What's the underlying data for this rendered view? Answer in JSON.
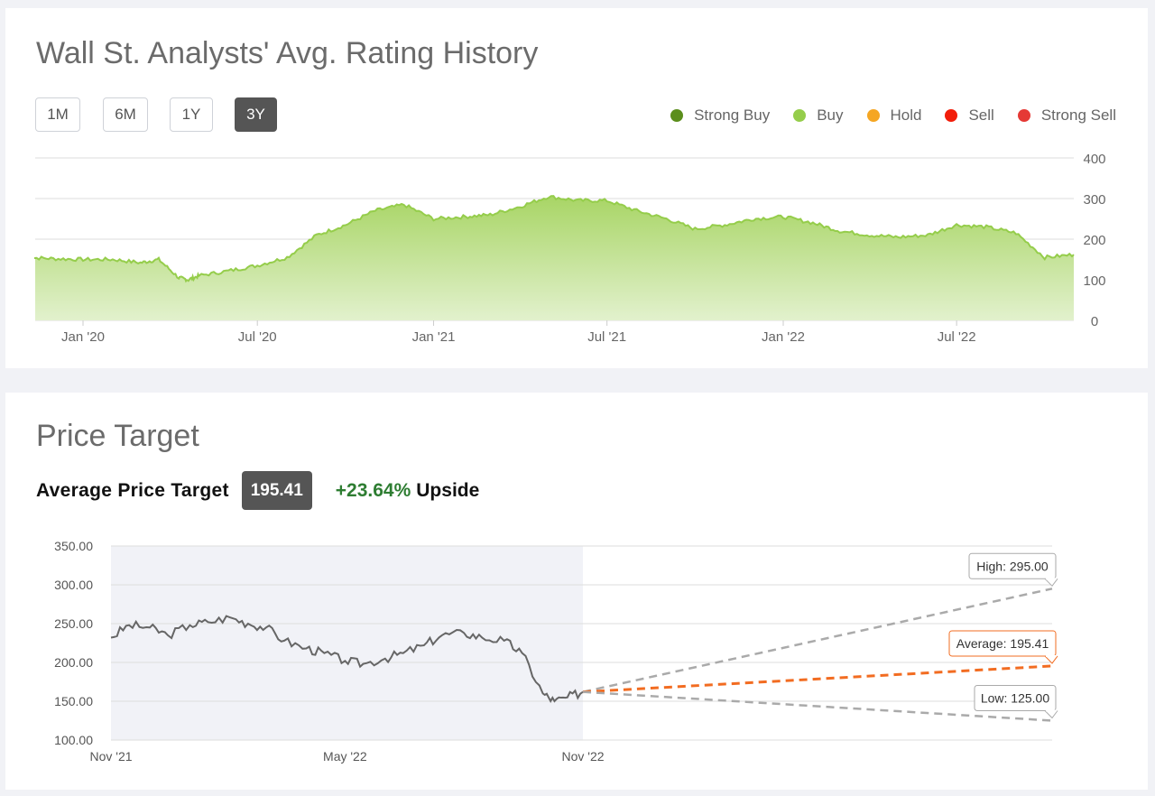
{
  "rating_section": {
    "title": "Wall St. Analysts' Avg. Rating History",
    "range_buttons": [
      {
        "label": "1M",
        "active": false
      },
      {
        "label": "6M",
        "active": false
      },
      {
        "label": "1Y",
        "active": false
      },
      {
        "label": "3Y",
        "active": true
      }
    ],
    "legend": [
      {
        "label": "Strong Buy",
        "color": "#5b8e1c"
      },
      {
        "label": "Buy",
        "color": "#95cd4b"
      },
      {
        "label": "Hold",
        "color": "#f5a623"
      },
      {
        "label": "Sell",
        "color": "#f21d0a"
      },
      {
        "label": "Strong Sell",
        "color": "#e53935"
      }
    ]
  },
  "price_section": {
    "title": "Price Target",
    "avg_label": "Average Price Target",
    "avg_value": "195.41",
    "upside_pct": "+23.64%",
    "upside_word": "Upside"
  },
  "chart_data": [
    {
      "type": "area",
      "ylim": [
        0,
        400
      ],
      "y_ticks": [
        "400",
        "300",
        "200",
        "100",
        "0"
      ],
      "x_tick_labels": [
        "Jan '20",
        "Jul '20",
        "Jan '21",
        "Jul '21",
        "Jan '22",
        "Jul '22"
      ],
      "series": [
        {
          "color": "#95cd4b",
          "points": [
            [
              "2019-11-01",
              155
            ],
            [
              "2019-12-01",
              152
            ],
            [
              "2020-01-01",
              150
            ],
            [
              "2020-02-01",
              150
            ],
            [
              "2020-03-01",
              142
            ],
            [
              "2020-03-20",
              150
            ],
            [
              "2020-04-10",
              105
            ],
            [
              "2020-04-20",
              100
            ],
            [
              "2020-05-01",
              110
            ],
            [
              "2020-06-01",
              122
            ],
            [
              "2020-07-01",
              135
            ],
            [
              "2020-08-01",
              155
            ],
            [
              "2020-09-01",
              210
            ],
            [
              "2020-10-01",
              235
            ],
            [
              "2020-11-01",
              270
            ],
            [
              "2020-12-01",
              285
            ],
            [
              "2021-01-01",
              250
            ],
            [
              "2021-02-01",
              255
            ],
            [
              "2021-03-01",
              260
            ],
            [
              "2021-04-01",
              280
            ],
            [
              "2021-05-01",
              305
            ],
            [
              "2021-06-01",
              295
            ],
            [
              "2021-07-01",
              295
            ],
            [
              "2021-08-01",
              270
            ],
            [
              "2021-09-01",
              250
            ],
            [
              "2021-10-01",
              225
            ],
            [
              "2021-11-01",
              235
            ],
            [
              "2021-12-01",
              250
            ],
            [
              "2022-01-01",
              255
            ],
            [
              "2022-02-01",
              240
            ],
            [
              "2022-03-01",
              220
            ],
            [
              "2022-04-01",
              210
            ],
            [
              "2022-05-01",
              205
            ],
            [
              "2022-06-01",
              210
            ],
            [
              "2022-07-01",
              235
            ],
            [
              "2022-08-01",
              230
            ],
            [
              "2022-09-01",
              215
            ],
            [
              "2022-10-01",
              155
            ],
            [
              "2022-11-01",
              162
            ]
          ]
        }
      ]
    },
    {
      "type": "line",
      "ylim": [
        100,
        350
      ],
      "y_ticks": [
        "350.00",
        "300.00",
        "250.00",
        "200.00",
        "150.00",
        "100.00"
      ],
      "x_tick_labels": [
        "Nov '21",
        "May '22",
        "Nov '22"
      ],
      "series": [
        {
          "name": "Price",
          "color": "#666666",
          "points": [
            [
              "2021-11-01",
              232
            ],
            [
              "2021-11-15",
              248
            ],
            [
              "2021-12-01",
              245
            ],
            [
              "2021-12-15",
              235
            ],
            [
              "2022-01-01",
              248
            ],
            [
              "2022-01-15",
              252
            ],
            [
              "2022-02-01",
              258
            ],
            [
              "2022-02-15",
              250
            ],
            [
              "2022-03-01",
              245
            ],
            [
              "2022-03-15",
              228
            ],
            [
              "2022-04-01",
              218
            ],
            [
              "2022-04-15",
              212
            ],
            [
              "2022-05-01",
              202
            ],
            [
              "2022-05-15",
              198
            ],
            [
              "2022-06-01",
              205
            ],
            [
              "2022-06-15",
              212
            ],
            [
              "2022-07-01",
              222
            ],
            [
              "2022-07-15",
              235
            ],
            [
              "2022-08-01",
              238
            ],
            [
              "2022-08-15",
              232
            ],
            [
              "2022-09-01",
              228
            ],
            [
              "2022-09-15",
              212
            ],
            [
              "2022-10-01",
              160
            ],
            [
              "2022-10-10",
              150
            ],
            [
              "2022-10-20",
              155
            ],
            [
              "2022-11-01",
              162
            ]
          ]
        }
      ],
      "targets": [
        {
          "label": "High: 295.00",
          "value": 295.0,
          "color": "#aaaaaa"
        },
        {
          "label": "Average: 195.41",
          "value": 195.41,
          "color": "#f26c21"
        },
        {
          "label": "Low: 125.00",
          "value": 125.0,
          "color": "#aaaaaa"
        }
      ]
    }
  ]
}
